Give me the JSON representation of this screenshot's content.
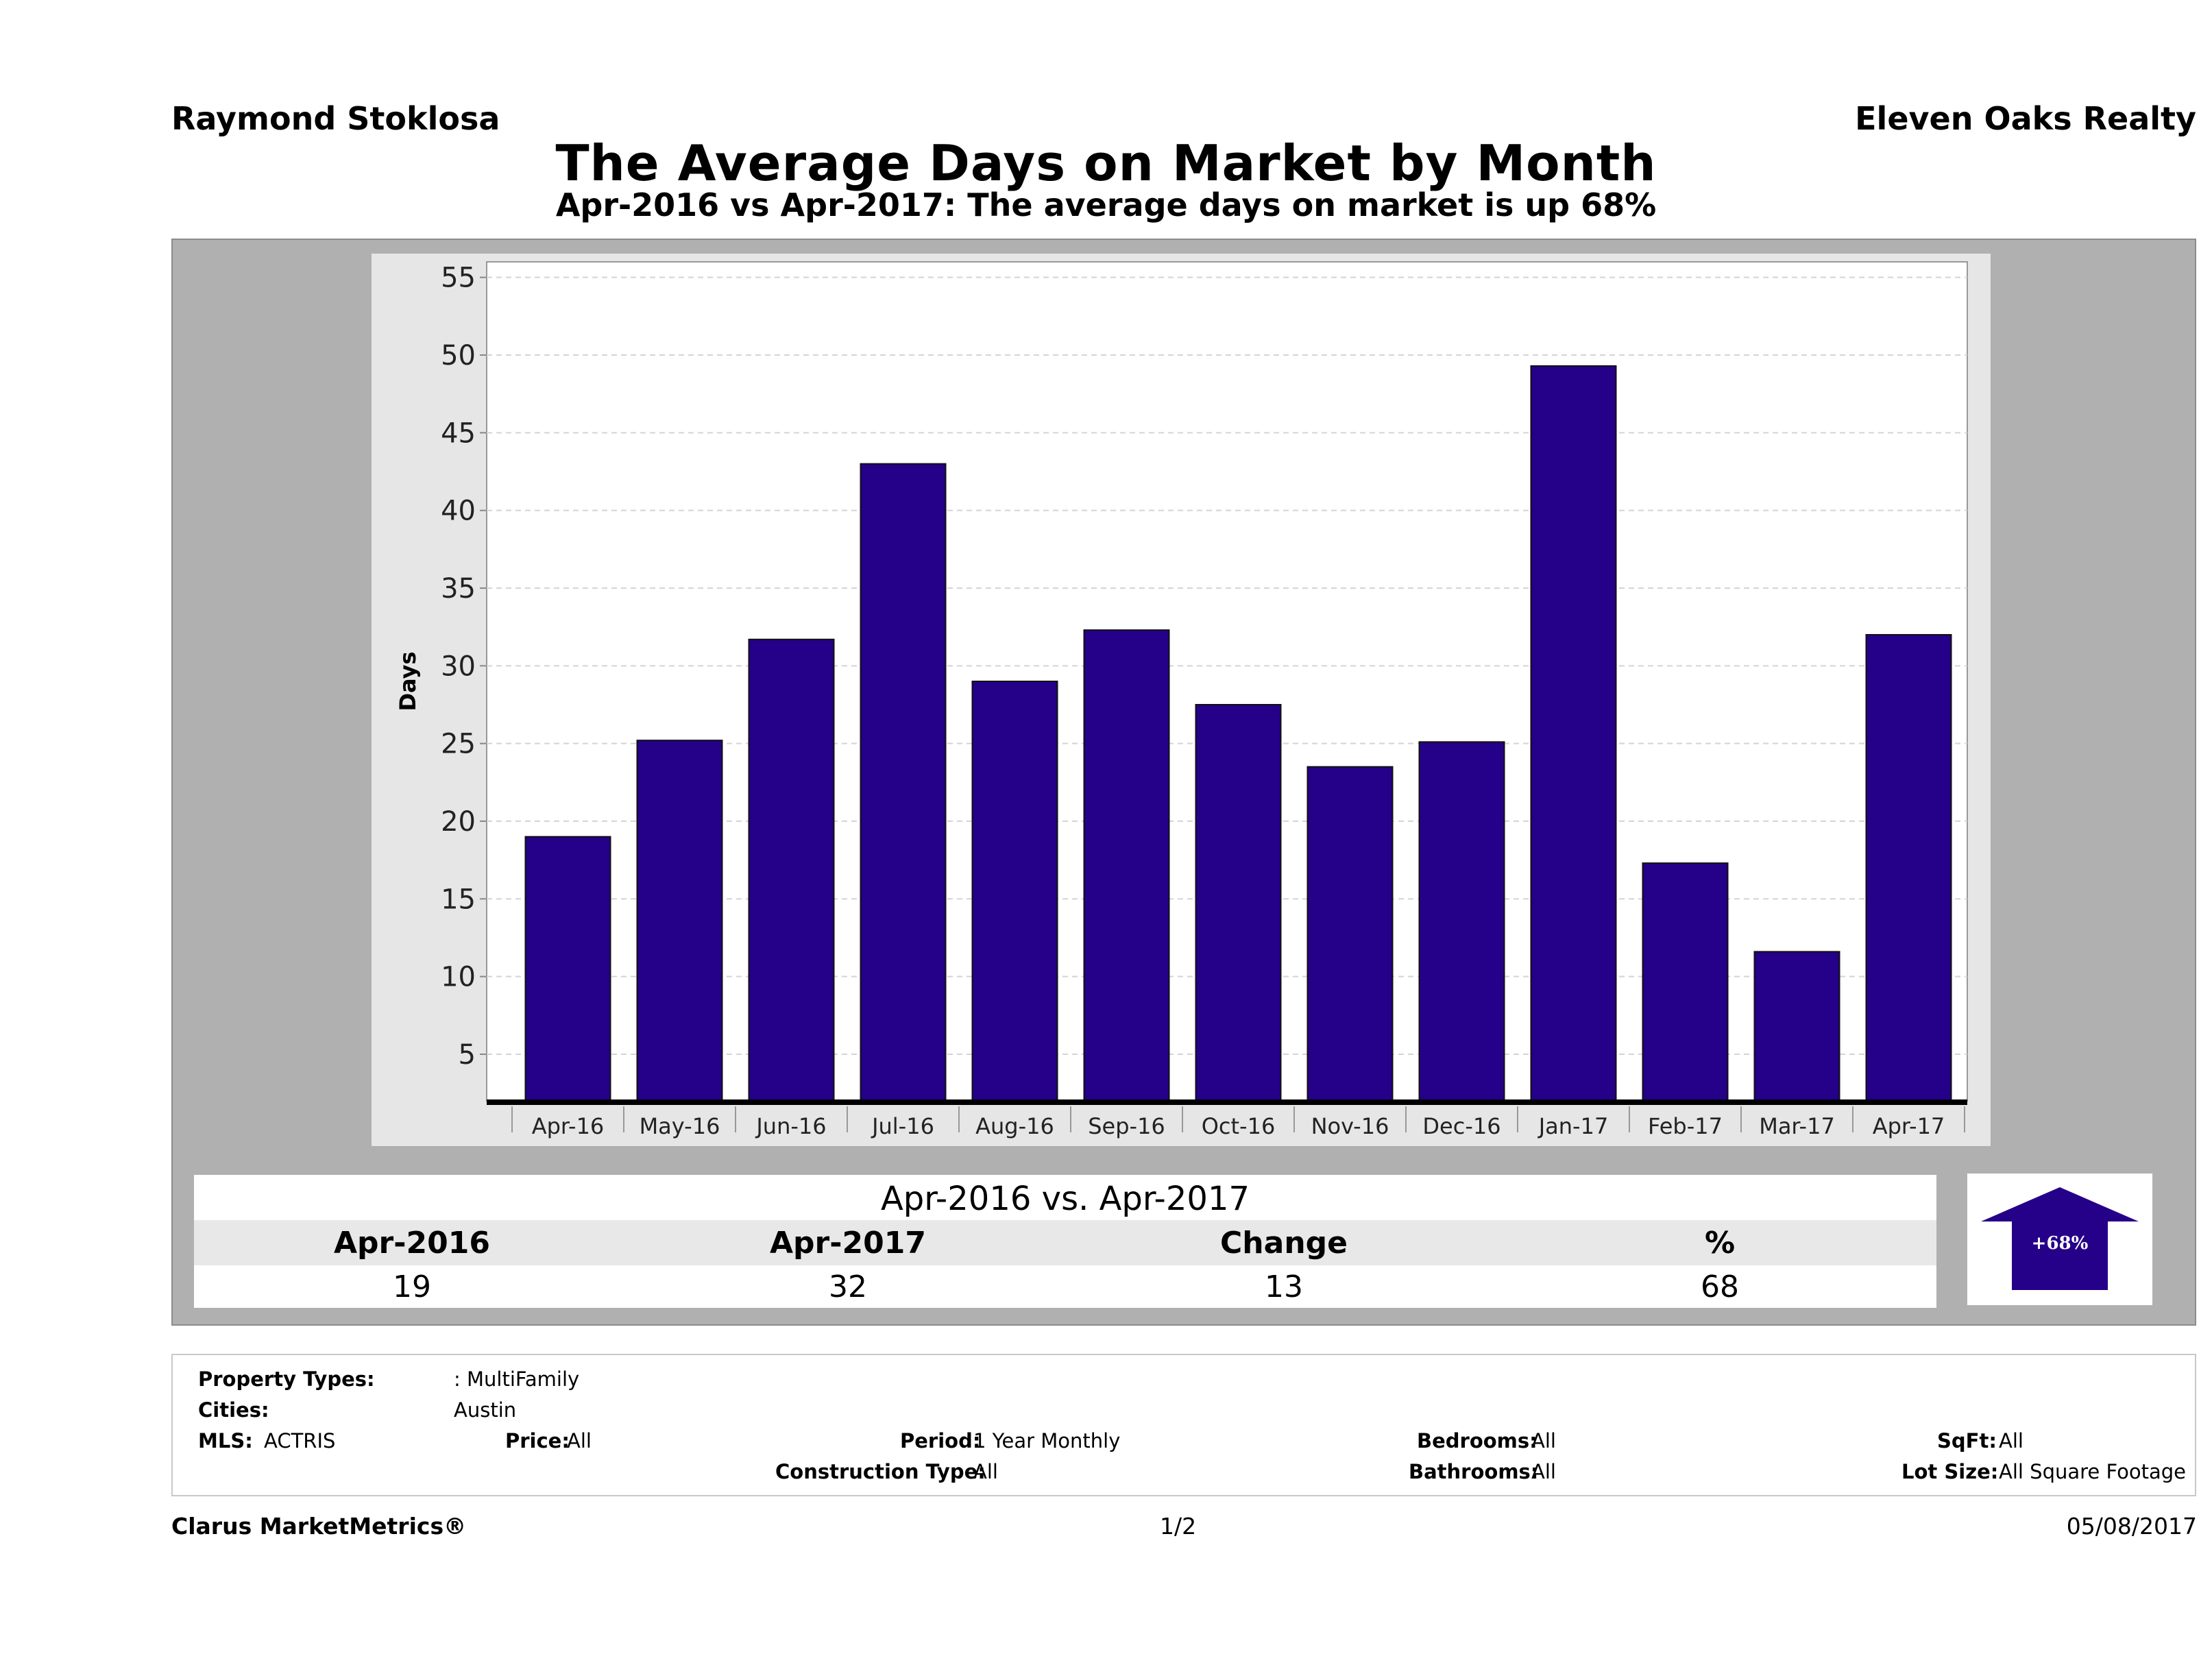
{
  "header": {
    "agent": "Raymond Stoklosa",
    "company": "Eleven Oaks Realty",
    "title": "The Average Days on Market by Month",
    "subtitle": "Apr-2016 vs Apr-2017: The average days on market is up 68%"
  },
  "chart_data": {
    "type": "bar",
    "title": "The Average Days on Market by Month",
    "ylabel": "Days",
    "xlabel": "",
    "ylim": [
      2,
      56
    ],
    "yticks": [
      5,
      10,
      15,
      20,
      25,
      30,
      35,
      40,
      45,
      50,
      55
    ],
    "grid": true,
    "categories": [
      "Apr-16",
      "May-16",
      "Jun-16",
      "Jul-16",
      "Aug-16",
      "Sep-16",
      "Oct-16",
      "Nov-16",
      "Dec-16",
      "Jan-17",
      "Feb-17",
      "Mar-17",
      "Apr-17"
    ],
    "values": [
      19,
      25.2,
      31.7,
      43,
      29,
      32.3,
      27.5,
      23.5,
      25.1,
      49.3,
      17.3,
      11.6,
      32
    ],
    "bar_color": "#250088",
    "bg_color": "#ffffff"
  },
  "summary": {
    "heading": "Apr-2016 vs. Apr-2017",
    "labels": [
      "Apr-2016",
      "Apr-2017",
      "Change",
      "%"
    ],
    "values": [
      "19",
      "32",
      "13",
      "68"
    ],
    "badge": "+68%",
    "badge_color": "#250088"
  },
  "filters": {
    "property_types_label": "Property Types:",
    "property_types_value": ": MultiFamily",
    "cities_label": "Cities:",
    "cities_value": "Austin",
    "mls_label": "MLS:",
    "mls_value": "ACTRIS",
    "price_label": "Price:",
    "price_value": "All",
    "period_label": "Period:",
    "period_value": "1 Year Monthly",
    "construction_label": "Construction Type:",
    "construction_value": "All",
    "bedrooms_label": "Bedrooms:",
    "bedrooms_value": "All",
    "bathrooms_label": "Bathrooms:",
    "bathrooms_value": "All",
    "sqft_label": "SqFt:",
    "sqft_value": "All",
    "lotsize_label": "Lot Size:",
    "lotsize_value": "All Square Footage"
  },
  "footer": {
    "brand": "Clarus MarketMetrics®",
    "page": "1/2",
    "date": "05/08/2017"
  }
}
